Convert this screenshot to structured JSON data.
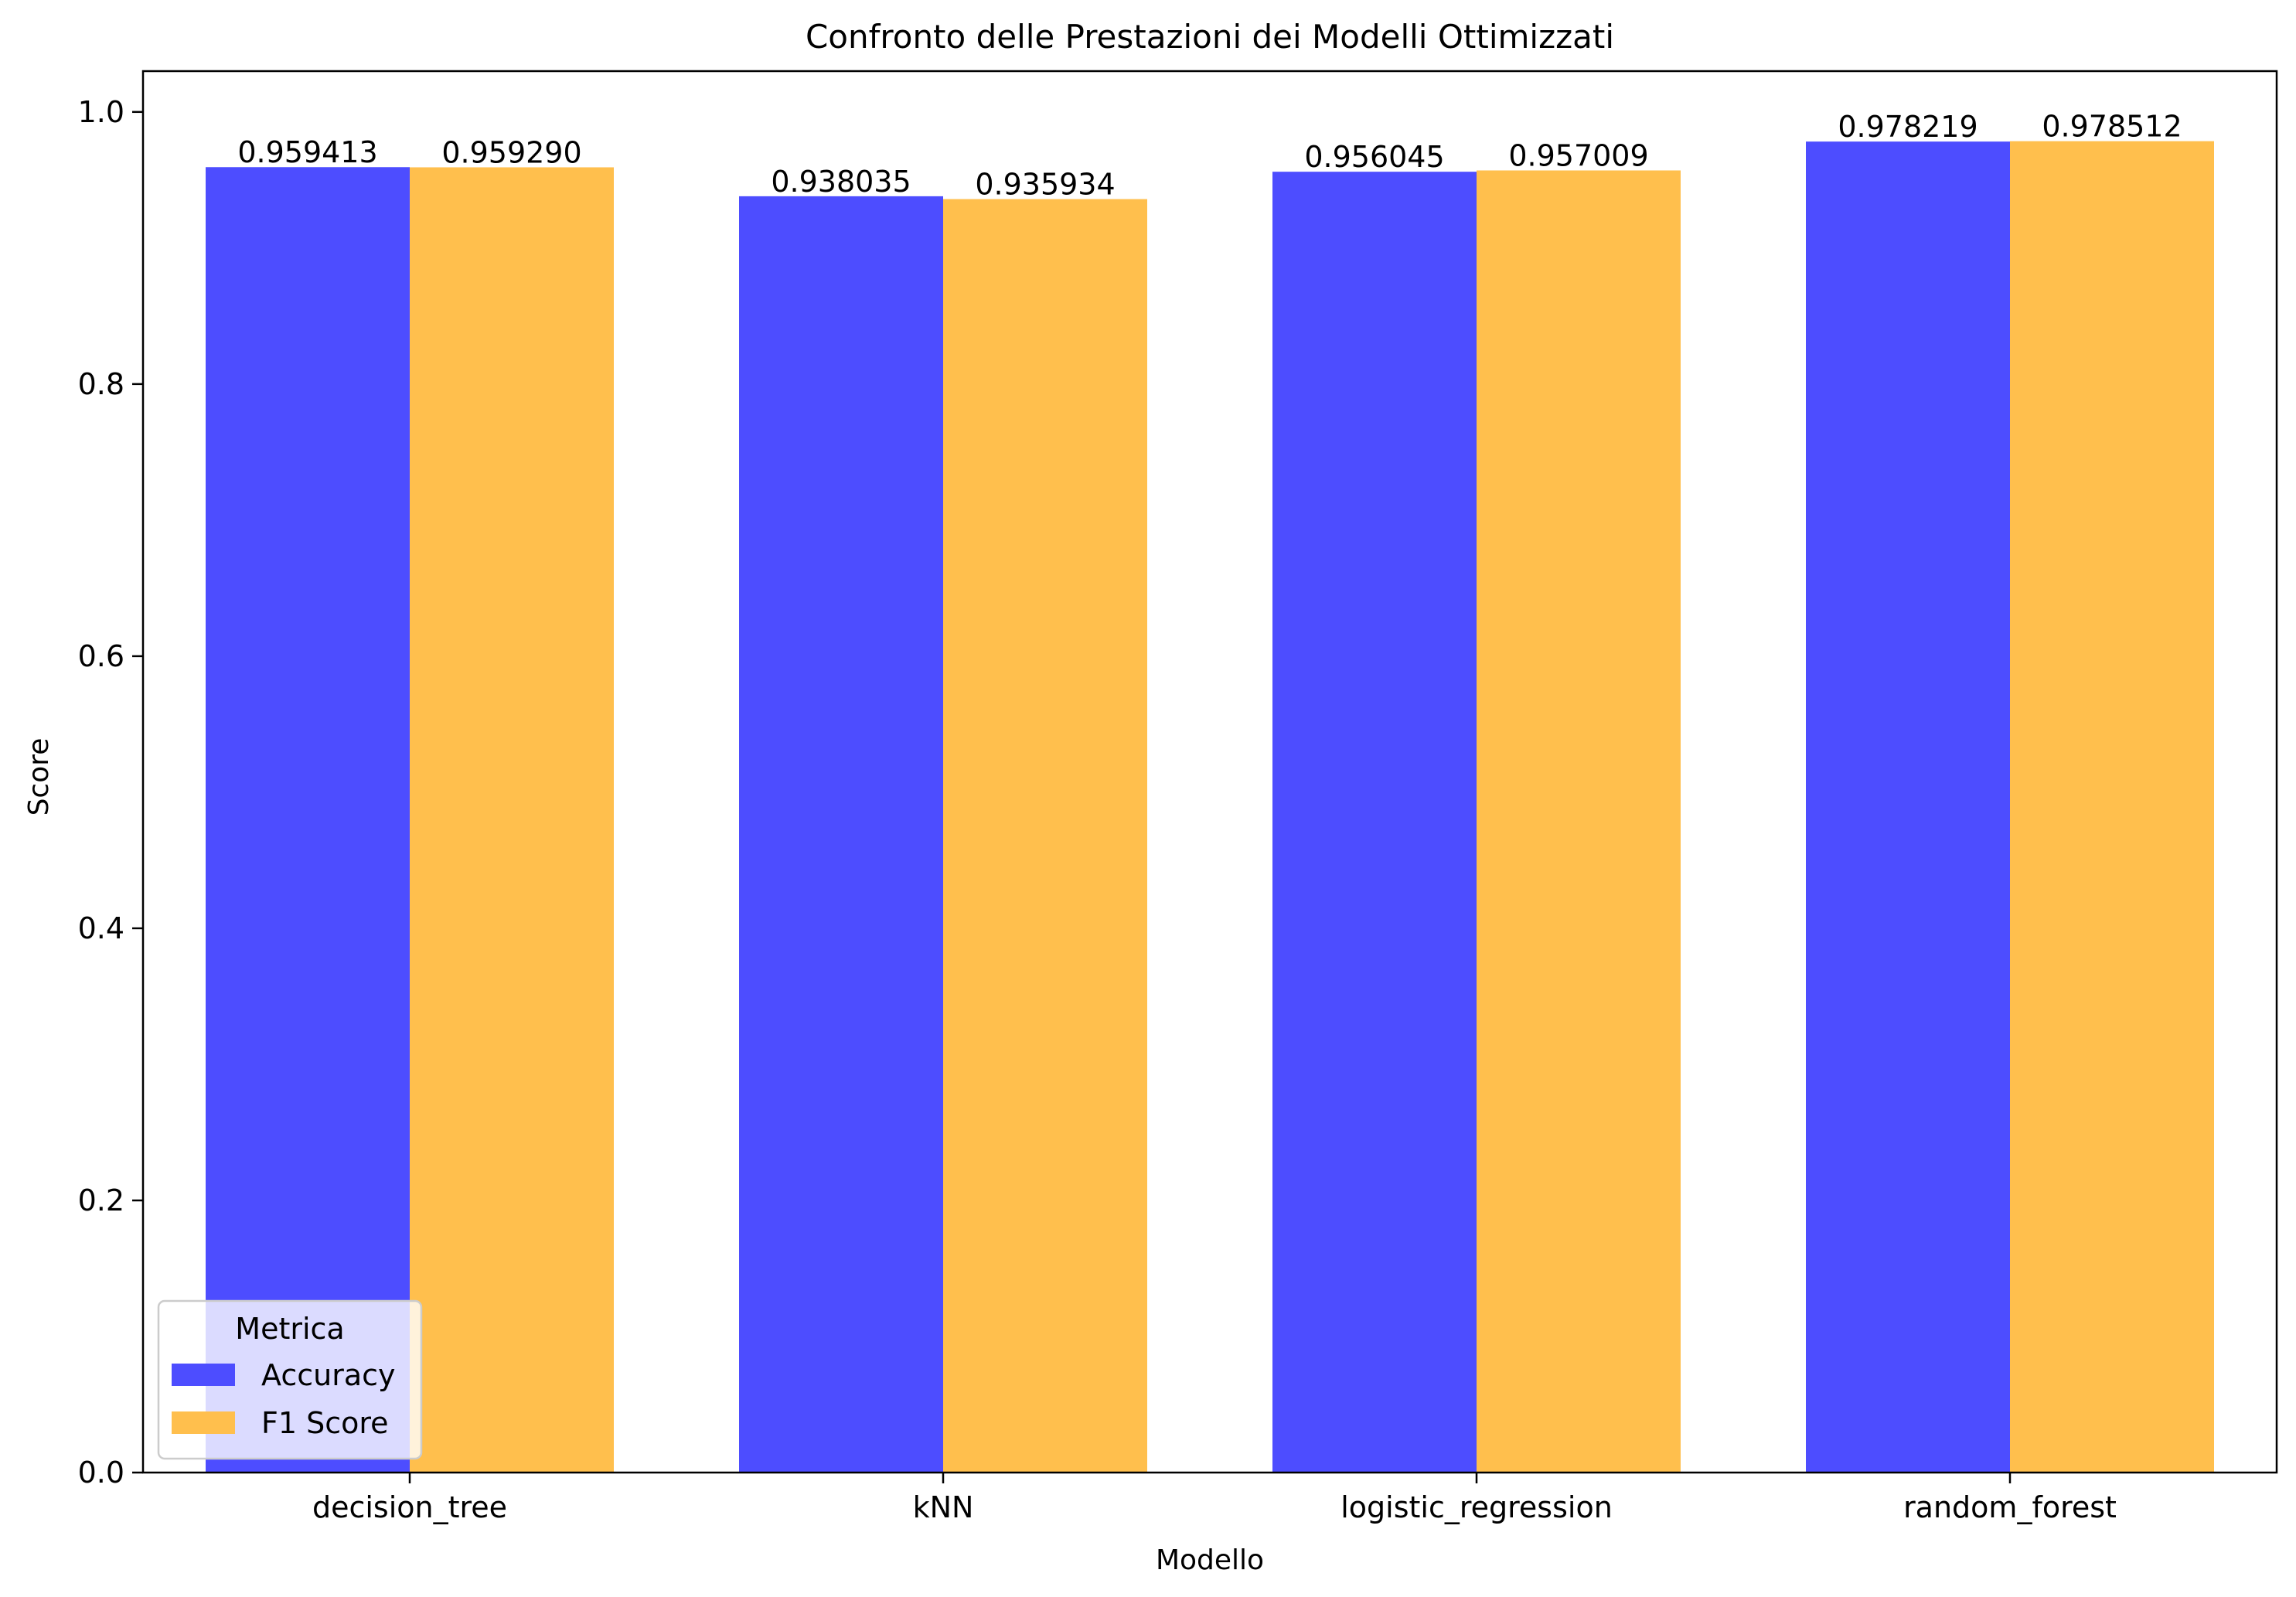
{
  "chart_data": {
    "type": "bar",
    "title": "Confronto delle Prestazioni dei Modelli Ottimizzati",
    "xlabel": "Modello",
    "ylabel": "Score",
    "categories": [
      "decision_tree",
      "kNN",
      "logistic_regression",
      "random_forest"
    ],
    "series": [
      {
        "name": "Accuracy",
        "color": "#4d4dff",
        "values": [
          0.959413,
          0.938035,
          0.956045,
          0.978219
        ],
        "labels": [
          "0.959413",
          "0.938035",
          "0.956045",
          "0.978219"
        ]
      },
      {
        "name": "F1 Score",
        "color": "#ffbf4d",
        "values": [
          0.95929,
          0.935934,
          0.957009,
          0.978512
        ],
        "labels": [
          "0.959290",
          "0.935934",
          "0.957009",
          "0.978512"
        ]
      }
    ],
    "ylim": [
      0,
      1.03
    ],
    "yticks": [
      0.0,
      0.2,
      0.4,
      0.6,
      0.8,
      1.0
    ],
    "ytick_labels": [
      "0.0",
      "0.2",
      "0.4",
      "0.6",
      "0.8",
      "1.0"
    ],
    "grid": false,
    "legend": {
      "title": "Metrica",
      "position": "lower-left"
    }
  }
}
